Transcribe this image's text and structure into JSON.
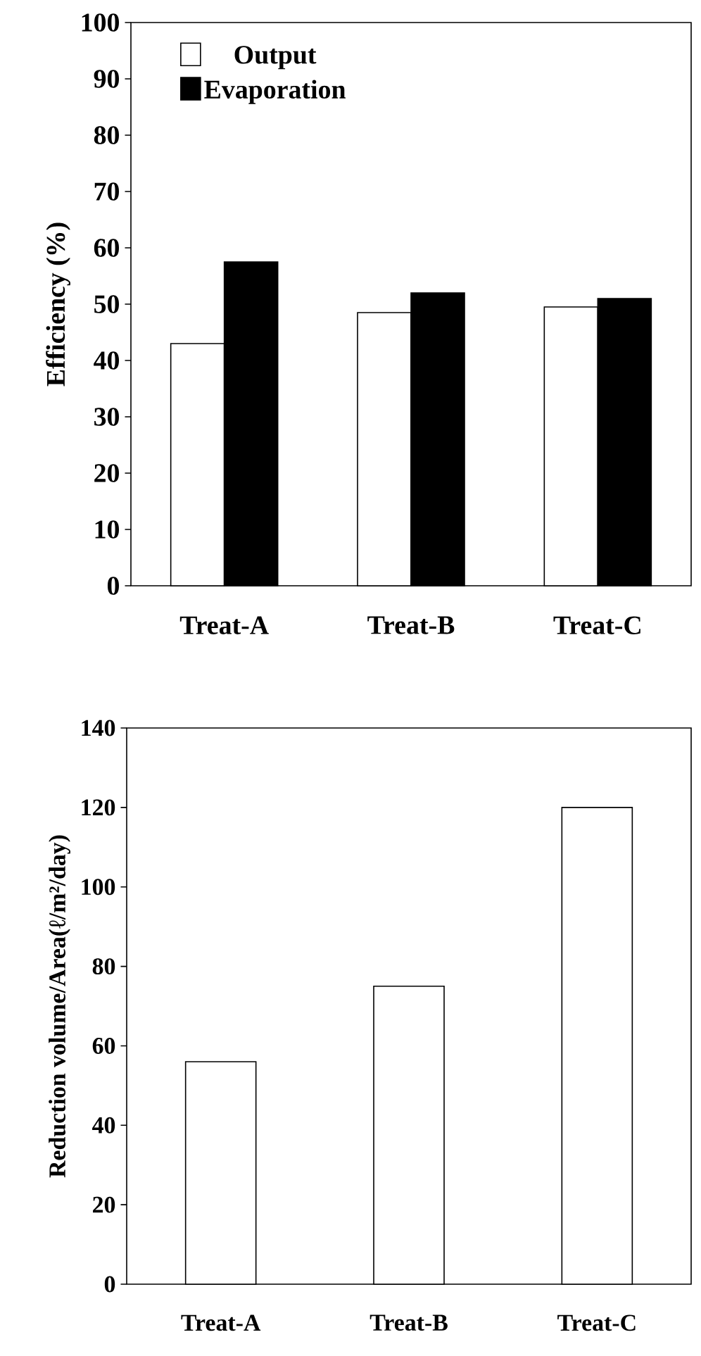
{
  "chart_data": [
    {
      "type": "bar",
      "ylabel": "Efficiency (%)",
      "categories": [
        "Treat-A",
        "Treat-B",
        "Treat-C"
      ],
      "series": [
        {
          "name": "Output",
          "color": "#ffffff",
          "values": [
            43,
            48.5,
            49.5
          ]
        },
        {
          "name": "Evaporation",
          "color": "#000000",
          "values": [
            57.5,
            52,
            51
          ]
        }
      ],
      "ylim": [
        0,
        100
      ],
      "yticks": [
        0,
        10,
        20,
        30,
        40,
        50,
        60,
        70,
        80,
        90,
        100
      ],
      "legend": "top left"
    },
    {
      "type": "bar",
      "ylabel": "Reduction volume/Area(ℓ/m²/day)",
      "categories": [
        "Treat-A",
        "Treat-B",
        "Treat-C"
      ],
      "series": [
        {
          "color": "#ffffff",
          "values": [
            56,
            75,
            120
          ]
        }
      ],
      "ylim": [
        0,
        140
      ],
      "yticks": [
        0,
        20,
        40,
        60,
        80,
        100,
        120,
        140
      ]
    }
  ]
}
